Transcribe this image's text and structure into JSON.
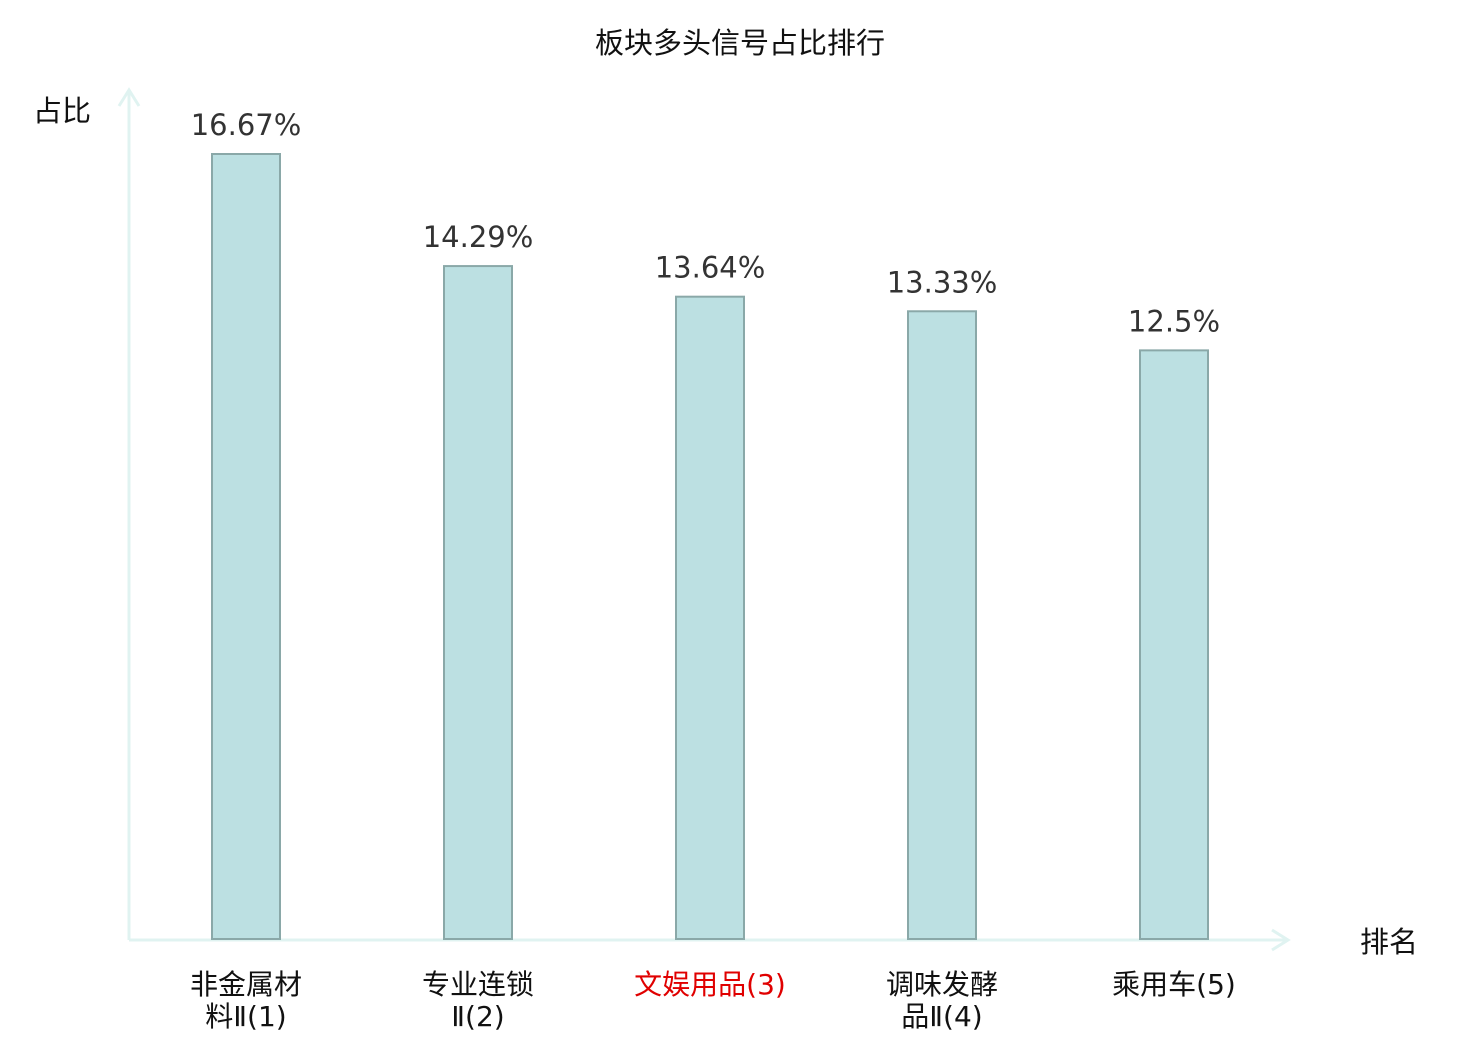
{
  "chart_data": {
    "type": "bar",
    "title": "板块多头信号占比排行",
    "ylabel": "占比",
    "xlabel": "排名",
    "categories": [
      [
        "非金属材",
        "料Ⅱ(1)"
      ],
      [
        "专业连锁",
        "Ⅱ(2)"
      ],
      [
        "文娱用品(3)"
      ],
      [
        "调味发酵",
        "品Ⅱ(4)"
      ],
      [
        "乘用车(5)"
      ]
    ],
    "values": [
      16.67,
      14.29,
      13.64,
      13.33,
      12.5
    ],
    "value_labels": [
      "16.67%",
      "14.29%",
      "13.64%",
      "13.33%",
      "12.5%"
    ],
    "highlight_index": 2,
    "ylim": [
      0,
      16.67
    ],
    "grid": false,
    "colors": {
      "bar_fill": "#bce0e2",
      "bar_stroke": "#8aa8a8",
      "axis": "#e0f3f1",
      "text": "#111111",
      "value_text": "#333333",
      "highlight_text": "#e00000"
    }
  }
}
